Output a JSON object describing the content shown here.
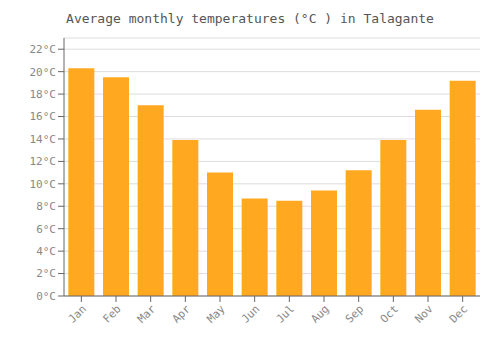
{
  "chart_data": {
    "type": "bar",
    "title": "Average monthly temperatures (°C ) in Talagante",
    "categories": [
      "Jan",
      "Feb",
      "Mar",
      "Apr",
      "May",
      "Jun",
      "Jul",
      "Aug",
      "Sep",
      "Oct",
      "Nov",
      "Dec"
    ],
    "values": [
      20.3,
      19.5,
      17.0,
      13.9,
      11.0,
      8.7,
      8.5,
      9.4,
      11.2,
      13.9,
      16.6,
      19.2
    ],
    "color": "#FFA820",
    "ylim": [
      0,
      23
    ],
    "yticks": [
      {
        "value": 0,
        "label": "0°C"
      },
      {
        "value": 2,
        "label": "2°C"
      },
      {
        "value": 4,
        "label": "4°C"
      },
      {
        "value": 6,
        "label": "6°C"
      },
      {
        "value": 8,
        "label": "8°C"
      },
      {
        "value": 10,
        "label": "10°C"
      },
      {
        "value": 12,
        "label": "12°C"
      },
      {
        "value": 14,
        "label": "14°C"
      },
      {
        "value": 16,
        "label": "16°C"
      },
      {
        "value": 18,
        "label": "18°C"
      },
      {
        "value": 20,
        "label": "20°C"
      },
      {
        "value": 22,
        "label": "22°C"
      }
    ],
    "grid": true
  }
}
